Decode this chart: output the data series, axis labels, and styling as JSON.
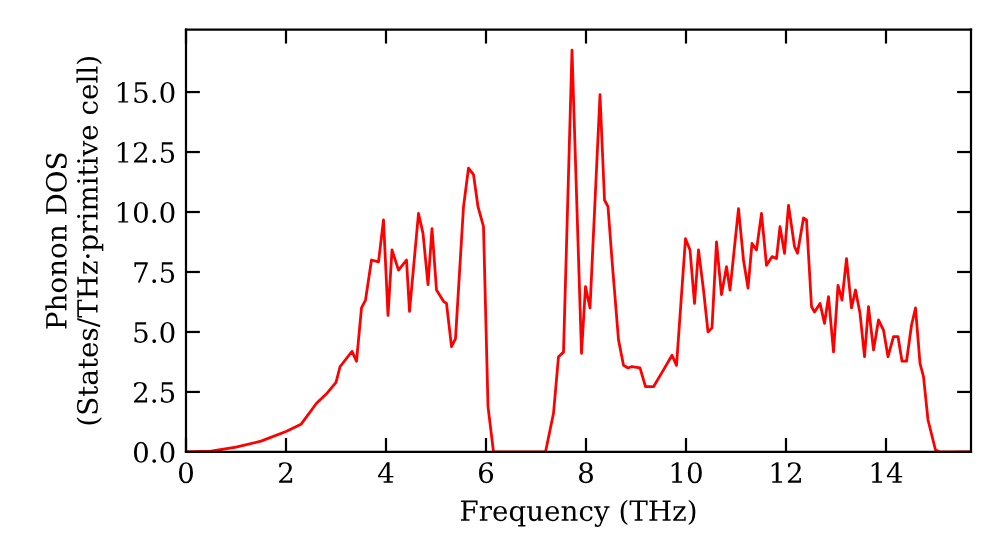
{
  "chart_data": {
    "type": "line",
    "xlabel": "Frequency (THz)",
    "ylabel": "Phonon DOS\n(States/THz·primitive cell)",
    "x": [
      0,
      0.5,
      1,
      1.5,
      2,
      2.3,
      2.61,
      2.8,
      3.0,
      3.08,
      3.32,
      3.41,
      3.51,
      3.59,
      3.71,
      3.85,
      3.95,
      4.04,
      4.12,
      4.25,
      4.41,
      4.47,
      4.65,
      4.74,
      4.84,
      4.92,
      5.01,
      5.15,
      5.21,
      5.31,
      5.39,
      5.55,
      5.65,
      5.75,
      5.84,
      5.95,
      6.04,
      6.15,
      7.19,
      7.35,
      7.45,
      7.55,
      7.72,
      7.91,
      7.99,
      8.08,
      8.28,
      8.37,
      8.44,
      8.52,
      8.65,
      8.75,
      8.84,
      8.92,
      9.08,
      9.19,
      9.35,
      9.55,
      9.72,
      9.81,
      9.99,
      10.08,
      10.17,
      10.25,
      10.35,
      10.44,
      10.52,
      10.61,
      10.71,
      10.81,
      10.88,
      11.05,
      11.15,
      11.24,
      11.32,
      11.41,
      11.51,
      11.61,
      11.72,
      11.81,
      11.88,
      11.97,
      12.05,
      12.17,
      12.23,
      12.35,
      12.41,
      12.51,
      12.57,
      12.68,
      12.77,
      12.85,
      12.95,
      13.04,
      13.12,
      13.21,
      13.31,
      13.39,
      13.48,
      13.57,
      13.65,
      13.75,
      13.85,
      13.95,
      14.04,
      14.15,
      14.24,
      14.32,
      14.41,
      14.51,
      14.59,
      14.68,
      14.75,
      14.84,
      14.99,
      15.08,
      15.7
    ],
    "series": [
      {
        "color": "#ff0000",
        "values": [
          0,
          0.03,
          0.2,
          0.45,
          0.85,
          1.15,
          2.03,
          2.4,
          2.9,
          3.55,
          4.19,
          3.78,
          6.0,
          6.33,
          8.0,
          7.92,
          9.67,
          5.69,
          8.42,
          7.58,
          8.0,
          5.86,
          9.94,
          9.11,
          6.97,
          9.31,
          6.75,
          6.28,
          6.19,
          4.39,
          4.72,
          10.22,
          11.83,
          11.56,
          10.22,
          9.39,
          1.89,
          0,
          0,
          1.61,
          3.97,
          4.16,
          16.75,
          4.11,
          6.89,
          6.0,
          14.89,
          10.5,
          10.22,
          8.0,
          4.67,
          3.61,
          3.5,
          3.56,
          3.5,
          2.72,
          2.72,
          3.42,
          4.03,
          3.61,
          8.89,
          8.42,
          6.19,
          8.42,
          6.75,
          5.0,
          5.17,
          8.75,
          6.56,
          7.72,
          6.75,
          10.14,
          8.0,
          6.83,
          8.69,
          8.42,
          9.94,
          7.78,
          8.14,
          8.06,
          9.39,
          8.28,
          10.28,
          8.56,
          8.28,
          9.75,
          9.67,
          6.06,
          5.83,
          6.19,
          5.36,
          6.47,
          4.17,
          6.94,
          6.33,
          8.06,
          6.0,
          6.75,
          5.78,
          3.97,
          6.06,
          4.25,
          5.5,
          5.08,
          3.97,
          4.81,
          4.81,
          3.78,
          3.78,
          5.28,
          6.0,
          3.69,
          3.14,
          1.33,
          0.08,
          0,
          0
        ]
      }
    ],
    "xlim": [
      0,
      15.7
    ],
    "ylim": [
      0,
      17.6
    ],
    "xticks": [
      0,
      2,
      4,
      6,
      8,
      10,
      12,
      14
    ],
    "yticks": [
      {
        "value": 0,
        "label": "0.0"
      },
      {
        "value": 2.5,
        "label": "2.5"
      },
      {
        "value": 5,
        "label": "5.0"
      },
      {
        "value": 7.5,
        "label": "7.5"
      },
      {
        "value": 10,
        "label": "10.0"
      },
      {
        "value": 12.5,
        "label": "12.5"
      },
      {
        "value": 15,
        "label": "15.0"
      }
    ],
    "grid": false,
    "legend": false,
    "marker": "none",
    "line_style": "solid"
  }
}
